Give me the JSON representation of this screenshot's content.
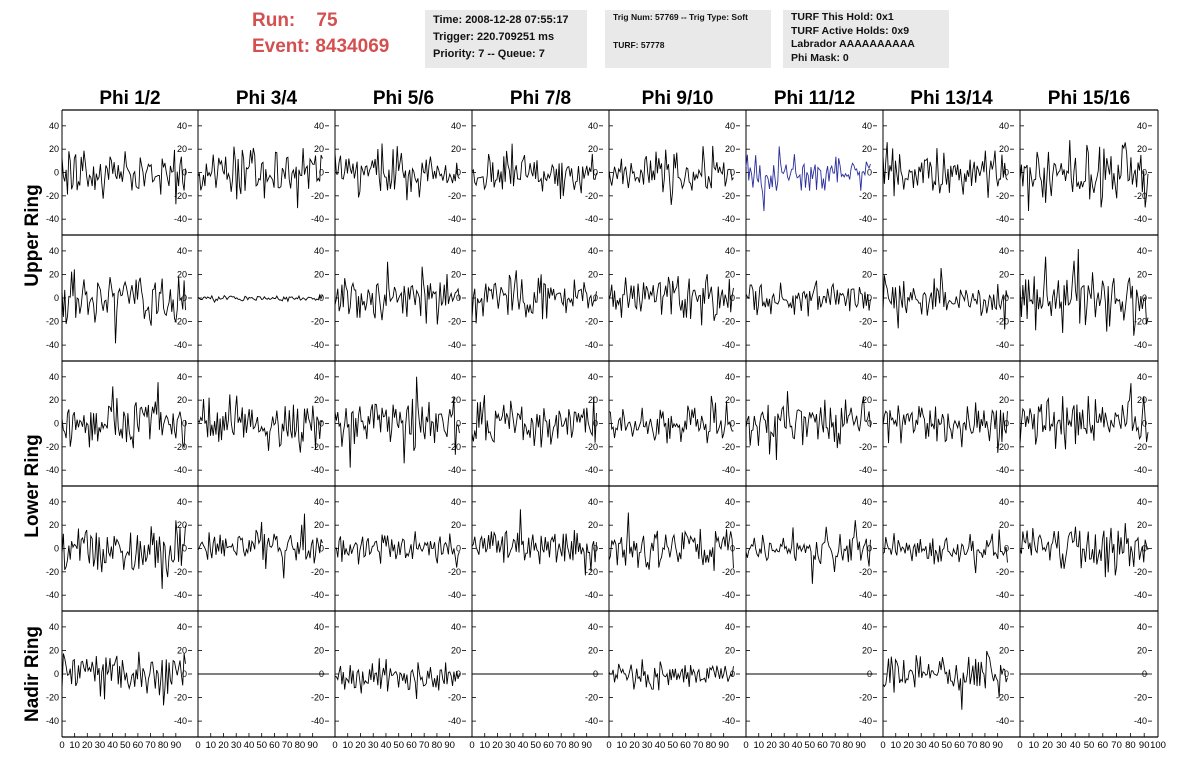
{
  "header": {
    "run_label": "Run:",
    "run_value": "75",
    "event_label": "Event:",
    "event_value": "8434069",
    "colors": {
      "header_text": "#d45050",
      "info_bg": "#e9e9e9"
    }
  },
  "info_time": {
    "time": "Time: 2008-12-28 07:55:17",
    "trigger": "Trigger: 220.709251 ms",
    "priority": "Priority: 7 -- Queue: 7"
  },
  "info_trig": {
    "trig": "Trig Num: 57769 -- Trig Type: Soft",
    "turf": "TURF: 57778"
  },
  "info_turf": {
    "this_hold": "TURF This Hold: 0x1",
    "active_holds": "TURF Active Holds: 0x9",
    "labrador": "Labrador AAAAAAAAAA",
    "phi_mask": "Phi Mask: 0"
  },
  "columns": [
    "Phi 1/2",
    "Phi 3/4",
    "Phi 5/6",
    "Phi 7/8",
    "Phi 9/10",
    "Phi 11/12",
    "Phi 13/14",
    "Phi 15/16"
  ],
  "ring_labels": [
    {
      "label": "Upper Ring",
      "rows": [
        0,
        1
      ]
    },
    {
      "label": "Lower Ring",
      "rows": [
        2,
        3
      ]
    },
    {
      "label": "Nadir Ring",
      "rows": [
        4
      ]
    }
  ],
  "chart_data": {
    "type": "line",
    "description": "5x8 grid of waveform panels (rows: 2 upper ring, 2 lower ring, 1 nadir ring; columns: phi sectors). Each panel is a noisy waveform over sample index.",
    "xlim": [
      0,
      100
    ],
    "xtick_labels": [
      "0",
      "10",
      "20",
      "30",
      "40",
      "50",
      "60",
      "70",
      "80",
      "90",
      "100"
    ],
    "ylim": [
      -45,
      45
    ],
    "ytick_labels": [
      "40",
      "20",
      "0",
      "-20",
      "-40"
    ],
    "ytick_values": [
      40,
      20,
      0,
      -20,
      -40
    ],
    "line_color": "#000000",
    "highlight_color": "#2b2f9c",
    "highlight": {
      "row": 0,
      "col": 5
    },
    "samples_per_trace": 90,
    "panels": [
      {
        "row": 0,
        "col": 0,
        "amplitude": 16,
        "offset": 0,
        "seed": 11
      },
      {
        "row": 0,
        "col": 1,
        "amplitude": 17,
        "offset": 0,
        "seed": 12
      },
      {
        "row": 0,
        "col": 2,
        "amplitude": 16,
        "offset": 0,
        "seed": 13
      },
      {
        "row": 0,
        "col": 3,
        "amplitude": 14,
        "offset": 0,
        "seed": 14
      },
      {
        "row": 0,
        "col": 4,
        "amplitude": 13,
        "offset": 0,
        "seed": 15
      },
      {
        "row": 0,
        "col": 5,
        "amplitude": 12,
        "offset": 0,
        "seed": 16
      },
      {
        "row": 0,
        "col": 6,
        "amplitude": 16,
        "offset": 0,
        "seed": 17
      },
      {
        "row": 0,
        "col": 7,
        "amplitude": 20,
        "offset": 0,
        "seed": 18
      },
      {
        "row": 1,
        "col": 0,
        "amplitude": 20,
        "offset": 0,
        "seed": 21
      },
      {
        "row": 1,
        "col": 1,
        "amplitude": 2,
        "offset": 0,
        "seed": 22
      },
      {
        "row": 1,
        "col": 2,
        "amplitude": 17,
        "offset": 0,
        "seed": 23
      },
      {
        "row": 1,
        "col": 3,
        "amplitude": 15,
        "offset": 0,
        "seed": 24
      },
      {
        "row": 1,
        "col": 4,
        "amplitude": 15,
        "offset": 0,
        "seed": 25
      },
      {
        "row": 1,
        "col": 5,
        "amplitude": 12,
        "offset": 0,
        "seed": 26
      },
      {
        "row": 1,
        "col": 6,
        "amplitude": 13,
        "offset": 0,
        "seed": 27
      },
      {
        "row": 1,
        "col": 7,
        "amplitude": 22,
        "offset": 0,
        "seed": 28
      },
      {
        "row": 2,
        "col": 0,
        "amplitude": 16,
        "offset": 0,
        "seed": 31
      },
      {
        "row": 2,
        "col": 1,
        "amplitude": 16,
        "offset": 0,
        "seed": 32
      },
      {
        "row": 2,
        "col": 2,
        "amplitude": 19,
        "offset": 0,
        "seed": 33
      },
      {
        "row": 2,
        "col": 3,
        "amplitude": 17,
        "offset": 0,
        "seed": 34
      },
      {
        "row": 2,
        "col": 4,
        "amplitude": 13,
        "offset": 0,
        "seed": 35
      },
      {
        "row": 2,
        "col": 5,
        "amplitude": 16,
        "offset": 0,
        "seed": 36
      },
      {
        "row": 2,
        "col": 6,
        "amplitude": 16,
        "offset": 0,
        "seed": 37
      },
      {
        "row": 2,
        "col": 7,
        "amplitude": 18,
        "offset": 0,
        "seed": 38
      },
      {
        "row": 3,
        "col": 0,
        "amplitude": 18,
        "offset": 0,
        "seed": 41
      },
      {
        "row": 3,
        "col": 1,
        "amplitude": 12,
        "offset": 0,
        "seed": 42
      },
      {
        "row": 3,
        "col": 2,
        "amplitude": 11,
        "offset": 0,
        "seed": 43
      },
      {
        "row": 3,
        "col": 3,
        "amplitude": 14,
        "offset": 0,
        "seed": 44
      },
      {
        "row": 3,
        "col": 4,
        "amplitude": 16,
        "offset": 0,
        "seed": 45
      },
      {
        "row": 3,
        "col": 5,
        "amplitude": 11,
        "offset": 0,
        "seed": 46
      },
      {
        "row": 3,
        "col": 6,
        "amplitude": 11,
        "offset": 0,
        "seed": 47
      },
      {
        "row": 3,
        "col": 7,
        "amplitude": 18,
        "offset": 0,
        "seed": 48
      },
      {
        "row": 4,
        "col": 0,
        "amplitude": 17,
        "offset": 0,
        "seed": 51
      },
      {
        "row": 4,
        "col": 1,
        "amplitude": 0,
        "offset": 0,
        "seed": 52
      },
      {
        "row": 4,
        "col": 2,
        "amplitude": 11,
        "offset": -2,
        "seed": 53
      },
      {
        "row": 4,
        "col": 3,
        "amplitude": 0,
        "offset": 0,
        "seed": 54
      },
      {
        "row": 4,
        "col": 4,
        "amplitude": 10,
        "offset": -1,
        "seed": 55
      },
      {
        "row": 4,
        "col": 5,
        "amplitude": 0,
        "offset": 0,
        "seed": 56
      },
      {
        "row": 4,
        "col": 6,
        "amplitude": 13,
        "offset": 0,
        "seed": 57
      },
      {
        "row": 4,
        "col": 7,
        "amplitude": 0,
        "offset": 0,
        "seed": 58
      }
    ]
  }
}
